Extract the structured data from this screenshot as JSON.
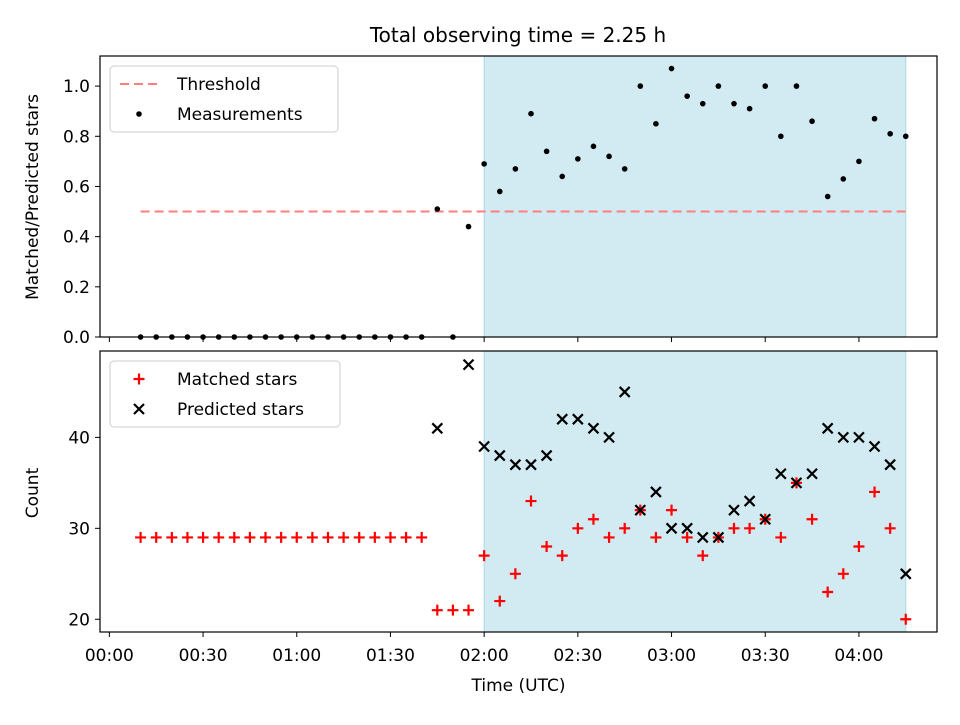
{
  "title": "Total observing time = 2.25 h",
  "colors": {
    "shade": "#add8e6",
    "threshold": "#ff7f7f",
    "measurement": "#000000",
    "matched": "#ff0000",
    "predicted": "#000000"
  },
  "chart_data": [
    {
      "type": "scatter",
      "panel": "top",
      "ylabel": "Matched/Predicted stars",
      "ylim": [
        0,
        1.12
      ],
      "yticks": [
        "0.0",
        "0.2",
        "0.4",
        "0.6",
        "0.8",
        "1.0"
      ],
      "ytick_values": [
        0,
        0.2,
        0.4,
        0.6,
        0.8,
        1.0
      ],
      "xlim_minutes": [
        -3,
        265
      ],
      "shaded_region_minutes": [
        120,
        255
      ],
      "legend": {
        "placement": "upper-left",
        "entries": [
          "Threshold",
          "Measurements"
        ]
      },
      "threshold": {
        "name": "Threshold",
        "value": 0.5,
        "x_range_minutes": [
          10,
          255
        ]
      },
      "series": [
        {
          "name": "Measurements",
          "x": [
            10,
            15,
            20,
            25,
            30,
            35,
            40,
            45,
            50,
            55,
            60,
            65,
            70,
            75,
            80,
            85,
            90,
            95,
            100,
            105,
            110,
            115,
            120,
            125,
            130,
            135,
            140,
            145,
            150,
            155,
            160,
            165,
            170,
            175,
            180,
            185,
            190,
            195,
            200,
            205,
            210,
            215,
            220,
            225,
            230,
            235,
            240,
            245,
            250,
            255
          ],
          "y": [
            0,
            0,
            0,
            0,
            0,
            0,
            0,
            0,
            0,
            0,
            0,
            0,
            0,
            0,
            0,
            0,
            0,
            0,
            0,
            0.51,
            0,
            0.44,
            0.69,
            0.58,
            0.67,
            0.89,
            0.74,
            0.64,
            0.71,
            0.76,
            0.72,
            0.67,
            1.0,
            0.85,
            1.07,
            0.96,
            0.93,
            1.0,
            0.93,
            0.91,
            1.0,
            0.8,
            1.0,
            0.86,
            0.56,
            0.63,
            0.7,
            0.87,
            0.81,
            0.8
          ]
        }
      ]
    },
    {
      "type": "scatter",
      "panel": "bottom",
      "xlabel": "Time (UTC)",
      "ylabel": "Count",
      "ylim": [
        18.6,
        49.5
      ],
      "yticks": [
        "20",
        "30",
        "40"
      ],
      "ytick_values": [
        20,
        30,
        40
      ],
      "xlim_minutes": [
        -3,
        265
      ],
      "xticks": [
        "00:00",
        "00:30",
        "01:00",
        "01:30",
        "02:00",
        "02:30",
        "03:00",
        "03:30",
        "04:00"
      ],
      "xtick_minutes": [
        0,
        30,
        60,
        90,
        120,
        150,
        180,
        210,
        240
      ],
      "shaded_region_minutes": [
        120,
        255
      ],
      "legend": {
        "placement": "upper-left",
        "entries": [
          "Matched stars",
          "Predicted stars"
        ]
      },
      "series": [
        {
          "name": "Matched stars",
          "marker": "+",
          "x": [
            10,
            15,
            20,
            25,
            30,
            35,
            40,
            45,
            50,
            55,
            60,
            65,
            70,
            75,
            80,
            85,
            90,
            95,
            100,
            105,
            110,
            115,
            120,
            125,
            130,
            135,
            140,
            145,
            150,
            155,
            160,
            165,
            170,
            175,
            180,
            185,
            190,
            195,
            200,
            205,
            210,
            215,
            220,
            225,
            230,
            235,
            240,
            245,
            250,
            255
          ],
          "y": [
            29,
            29,
            29,
            29,
            29,
            29,
            29,
            29,
            29,
            29,
            29,
            29,
            29,
            29,
            29,
            29,
            29,
            29,
            29,
            21,
            21,
            21,
            27,
            22,
            25,
            33,
            28,
            27,
            30,
            31,
            29,
            30,
            32,
            29,
            32,
            29,
            27,
            29,
            30,
            30,
            31,
            29,
            35,
            31,
            23,
            25,
            28,
            34,
            30,
            20
          ]
        },
        {
          "name": "Predicted stars",
          "marker": "x",
          "x": [
            105,
            115,
            120,
            125,
            130,
            135,
            140,
            145,
            150,
            155,
            160,
            165,
            170,
            175,
            180,
            185,
            190,
            195,
            200,
            205,
            210,
            215,
            220,
            225,
            230,
            235,
            240,
            245,
            250,
            255
          ],
          "y": [
            41,
            48,
            39,
            38,
            37,
            37,
            38,
            42,
            42,
            41,
            40,
            45,
            32,
            34,
            30,
            30,
            29,
            29,
            32,
            33,
            31,
            36,
            35,
            36,
            41,
            40,
            40,
            39,
            37,
            25
          ]
        }
      ]
    }
  ]
}
